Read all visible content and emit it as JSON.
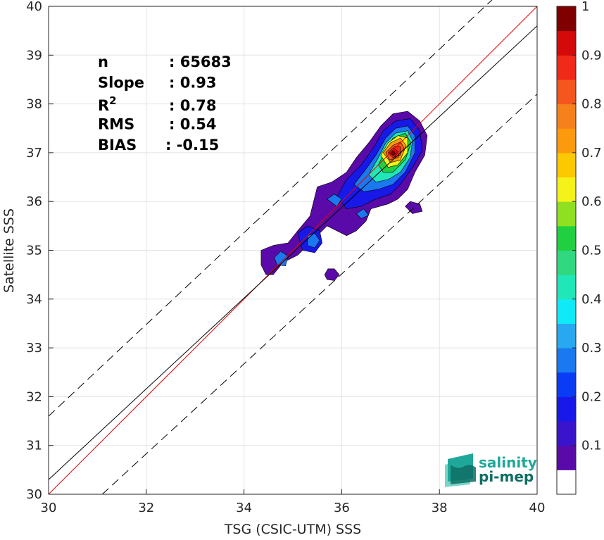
{
  "chart_data": {
    "type": "heatmap",
    "title": "",
    "xlabel": "TSG (CSIC-UTM) SSS",
    "ylabel": "Satellite SSS",
    "xlim": [
      30,
      40
    ],
    "ylim": [
      30,
      40
    ],
    "xticks": [
      30,
      32,
      34,
      36,
      38,
      40
    ],
    "yticks": [
      30,
      31,
      32,
      33,
      34,
      35,
      36,
      37,
      38,
      39,
      40
    ],
    "grid": true,
    "colorbar": {
      "range": [
        0,
        1
      ],
      "ticks": [
        {
          "value": 0.1,
          "label": "0.1"
        },
        {
          "value": 0.2,
          "label": "0.2"
        },
        {
          "value": 0.3,
          "label": "0.3"
        },
        {
          "value": 0.4,
          "label": "0.4"
        },
        {
          "value": 0.5,
          "label": "0.5"
        },
        {
          "value": 0.6,
          "label": "0.6"
        },
        {
          "value": 0.7,
          "label": "0.7"
        },
        {
          "value": 0.8,
          "label": "0.8"
        },
        {
          "value": 0.9,
          "label": "0.9"
        },
        {
          "value": 1.0,
          "label": "1"
        }
      ],
      "levels": [
        {
          "from": 0.0,
          "to": 0.05,
          "color": "#ffffff"
        },
        {
          "from": 0.05,
          "to": 0.1,
          "color": "#5a0aa8"
        },
        {
          "from": 0.1,
          "to": 0.15,
          "color": "#3a14cc"
        },
        {
          "from": 0.15,
          "to": 0.2,
          "color": "#1818e8"
        },
        {
          "from": 0.2,
          "to": 0.25,
          "color": "#0a3cf5"
        },
        {
          "from": 0.25,
          "to": 0.3,
          "color": "#1a78f0"
        },
        {
          "from": 0.3,
          "to": 0.35,
          "color": "#28a8f0"
        },
        {
          "from": 0.35,
          "to": 0.4,
          "color": "#10eaf8"
        },
        {
          "from": 0.4,
          "to": 0.45,
          "color": "#20e6b8"
        },
        {
          "from": 0.45,
          "to": 0.5,
          "color": "#30d880"
        },
        {
          "from": 0.5,
          "to": 0.55,
          "color": "#20d040"
        },
        {
          "from": 0.55,
          "to": 0.6,
          "color": "#8ee020"
        },
        {
          "from": 0.6,
          "to": 0.65,
          "color": "#f4f21a"
        },
        {
          "from": 0.65,
          "to": 0.7,
          "color": "#fcc800"
        },
        {
          "from": 0.7,
          "to": 0.75,
          "color": "#fb9a0c"
        },
        {
          "from": 0.75,
          "to": 0.8,
          "color": "#f6801c"
        },
        {
          "from": 0.8,
          "to": 0.85,
          "color": "#f4561e"
        },
        {
          "from": 0.85,
          "to": 0.9,
          "color": "#f02a18"
        },
        {
          "from": 0.9,
          "to": 0.95,
          "color": "#d40a0a"
        },
        {
          "from": 0.95,
          "to": 1.0,
          "color": "#800000"
        }
      ]
    },
    "lines": [
      {
        "name": "1:1",
        "color": "#e60000",
        "style": "solid",
        "points": [
          [
            30,
            30
          ],
          [
            40,
            40
          ]
        ]
      },
      {
        "name": "regression",
        "color": "#000000",
        "style": "solid",
        "points": [
          [
            30,
            30.3
          ],
          [
            40,
            39.6
          ]
        ]
      },
      {
        "name": "upper-bound",
        "color": "#000000",
        "style": "dashed",
        "points": [
          [
            30,
            31.6
          ],
          [
            40,
            41.0
          ]
        ]
      },
      {
        "name": "lower-bound",
        "color": "#000000",
        "style": "dashed",
        "points": [
          [
            31.1,
            30.0
          ],
          [
            40,
            38.2
          ]
        ]
      }
    ],
    "density_regions": [
      {
        "level": 0.05,
        "points": [
          [
            34.35,
            34.7
          ],
          [
            34.35,
            35.0
          ],
          [
            34.6,
            35.1
          ],
          [
            34.9,
            35.15
          ],
          [
            35.1,
            35.4
          ],
          [
            35.35,
            35.7
          ],
          [
            35.5,
            36.3
          ],
          [
            35.8,
            36.4
          ],
          [
            36.1,
            36.6
          ],
          [
            36.3,
            36.9
          ],
          [
            36.55,
            37.2
          ],
          [
            36.8,
            37.55
          ],
          [
            37.05,
            37.8
          ],
          [
            37.35,
            37.85
          ],
          [
            37.6,
            37.65
          ],
          [
            37.75,
            37.35
          ],
          [
            37.7,
            36.95
          ],
          [
            37.5,
            36.6
          ],
          [
            37.35,
            36.25
          ],
          [
            37.15,
            36.05
          ],
          [
            36.95,
            35.95
          ],
          [
            36.6,
            35.85
          ],
          [
            36.5,
            35.6
          ],
          [
            36.3,
            35.4
          ],
          [
            36.1,
            35.3
          ],
          [
            35.9,
            35.4
          ],
          [
            35.7,
            35.5
          ],
          [
            35.4,
            35.2
          ],
          [
            35.1,
            34.9
          ],
          [
            34.8,
            34.75
          ],
          [
            34.6,
            34.5
          ],
          [
            34.45,
            34.5
          ]
        ]
      },
      {
        "level": 0.05,
        "points": [
          [
            37.4,
            36.0
          ],
          [
            37.6,
            35.95
          ],
          [
            37.65,
            35.8
          ],
          [
            37.45,
            35.75
          ],
          [
            37.3,
            35.9
          ]
        ]
      },
      {
        "level": 0.05,
        "points": [
          [
            35.65,
            34.5
          ],
          [
            35.72,
            34.62
          ],
          [
            35.85,
            34.62
          ],
          [
            35.95,
            34.5
          ],
          [
            35.85,
            34.38
          ],
          [
            35.7,
            34.4
          ]
        ]
      },
      {
        "level": 0.15,
        "points": [
          [
            35.9,
            36.1
          ],
          [
            36.1,
            36.45
          ],
          [
            36.4,
            36.75
          ],
          [
            36.65,
            37.1
          ],
          [
            36.85,
            37.45
          ],
          [
            37.1,
            37.65
          ],
          [
            37.4,
            37.7
          ],
          [
            37.6,
            37.45
          ],
          [
            37.65,
            37.05
          ],
          [
            37.45,
            36.7
          ],
          [
            37.2,
            36.35
          ],
          [
            37.0,
            36.15
          ],
          [
            36.7,
            36.05
          ],
          [
            36.4,
            35.9
          ],
          [
            36.1,
            35.85
          ]
        ]
      },
      {
        "level": 0.15,
        "points": [
          [
            35.1,
            35.35
          ],
          [
            35.3,
            35.5
          ],
          [
            35.55,
            35.4
          ],
          [
            35.6,
            35.15
          ],
          [
            35.45,
            34.95
          ],
          [
            35.2,
            35.0
          ]
        ]
      },
      {
        "level": 0.25,
        "points": [
          [
            36.25,
            36.35
          ],
          [
            36.45,
            36.6
          ],
          [
            36.7,
            36.95
          ],
          [
            36.9,
            37.3
          ],
          [
            37.1,
            37.5
          ],
          [
            37.35,
            37.55
          ],
          [
            37.5,
            37.35
          ],
          [
            37.5,
            37.0
          ],
          [
            37.3,
            36.6
          ],
          [
            37.05,
            36.35
          ],
          [
            36.75,
            36.25
          ],
          [
            36.45,
            36.2
          ]
        ]
      },
      {
        "level": 0.25,
        "points": [
          [
            35.3,
            35.3
          ],
          [
            35.45,
            35.35
          ],
          [
            35.55,
            35.2
          ],
          [
            35.45,
            35.05
          ],
          [
            35.3,
            35.1
          ]
        ]
      },
      {
        "level": 0.25,
        "points": [
          [
            34.62,
            34.85
          ],
          [
            34.75,
            34.98
          ],
          [
            34.9,
            34.88
          ],
          [
            34.85,
            34.68
          ],
          [
            34.68,
            34.7
          ]
        ]
      },
      {
        "level": 0.25,
        "points": [
          [
            35.7,
            36.05
          ],
          [
            35.85,
            36.15
          ],
          [
            36.0,
            36.05
          ],
          [
            35.9,
            35.9
          ]
        ]
      },
      {
        "level": 0.25,
        "points": [
          [
            36.3,
            35.75
          ],
          [
            36.45,
            35.85
          ],
          [
            36.55,
            35.72
          ],
          [
            36.4,
            35.65
          ]
        ]
      },
      {
        "level": 0.4,
        "points": [
          [
            36.55,
            36.55
          ],
          [
            36.75,
            36.9
          ],
          [
            36.9,
            37.2
          ],
          [
            37.1,
            37.4
          ],
          [
            37.35,
            37.45
          ],
          [
            37.45,
            37.25
          ],
          [
            37.4,
            36.9
          ],
          [
            37.2,
            36.6
          ],
          [
            36.95,
            36.45
          ],
          [
            36.7,
            36.4
          ]
        ]
      },
      {
        "level": 0.5,
        "points": [
          [
            36.75,
            36.75
          ],
          [
            36.9,
            37.05
          ],
          [
            37.05,
            37.3
          ],
          [
            37.3,
            37.4
          ],
          [
            37.42,
            37.2
          ],
          [
            37.3,
            36.85
          ],
          [
            37.05,
            36.6
          ],
          [
            36.85,
            36.6
          ]
        ]
      },
      {
        "level": 0.6,
        "points": [
          [
            36.8,
            36.95
          ],
          [
            36.95,
            37.2
          ],
          [
            37.15,
            37.35
          ],
          [
            37.35,
            37.3
          ],
          [
            37.35,
            37.0
          ],
          [
            37.15,
            36.75
          ],
          [
            36.95,
            36.7
          ]
        ]
      },
      {
        "level": 0.7,
        "points": [
          [
            36.85,
            37.0
          ],
          [
            37.0,
            37.2
          ],
          [
            37.2,
            37.3
          ],
          [
            37.32,
            37.15
          ],
          [
            37.2,
            36.85
          ],
          [
            37.0,
            36.8
          ]
        ]
      },
      {
        "level": 0.8,
        "points": [
          [
            36.9,
            37.0
          ],
          [
            37.05,
            37.15
          ],
          [
            37.2,
            37.22
          ],
          [
            37.28,
            37.1
          ],
          [
            37.15,
            36.9
          ],
          [
            36.98,
            36.85
          ]
        ]
      },
      {
        "level": 0.85,
        "points": [
          [
            36.95,
            37.0
          ],
          [
            37.08,
            37.12
          ],
          [
            37.2,
            37.12
          ],
          [
            37.2,
            36.95
          ],
          [
            37.05,
            36.9
          ]
        ]
      },
      {
        "level": 0.9,
        "points": [
          [
            36.98,
            37.0
          ],
          [
            37.08,
            37.08
          ],
          [
            37.16,
            37.02
          ],
          [
            37.08,
            36.92
          ]
        ]
      },
      {
        "level": 0.95,
        "points": [
          [
            37.0,
            37.0
          ],
          [
            37.06,
            37.04
          ],
          [
            37.1,
            36.98
          ],
          [
            37.04,
            36.95
          ]
        ]
      }
    ],
    "stats": [
      {
        "label": "n",
        "sep": ": ",
        "value": "65683"
      },
      {
        "label": "Slope",
        "sep": ": ",
        "value": "0.93"
      },
      {
        "label": "R",
        "sup": "2",
        "sep": ": ",
        "value": "0.78"
      },
      {
        "label": "RMS",
        "sep": ": ",
        "value": "0.54"
      },
      {
        "label": "BIAS",
        "sep": ": ",
        "value": "-0.15"
      }
    ]
  },
  "logo": {
    "line1": "salinity",
    "line2": "pi-mep",
    "colors": [
      "#1fa89a",
      "#0f6e64",
      "#7ad6c8"
    ]
  }
}
